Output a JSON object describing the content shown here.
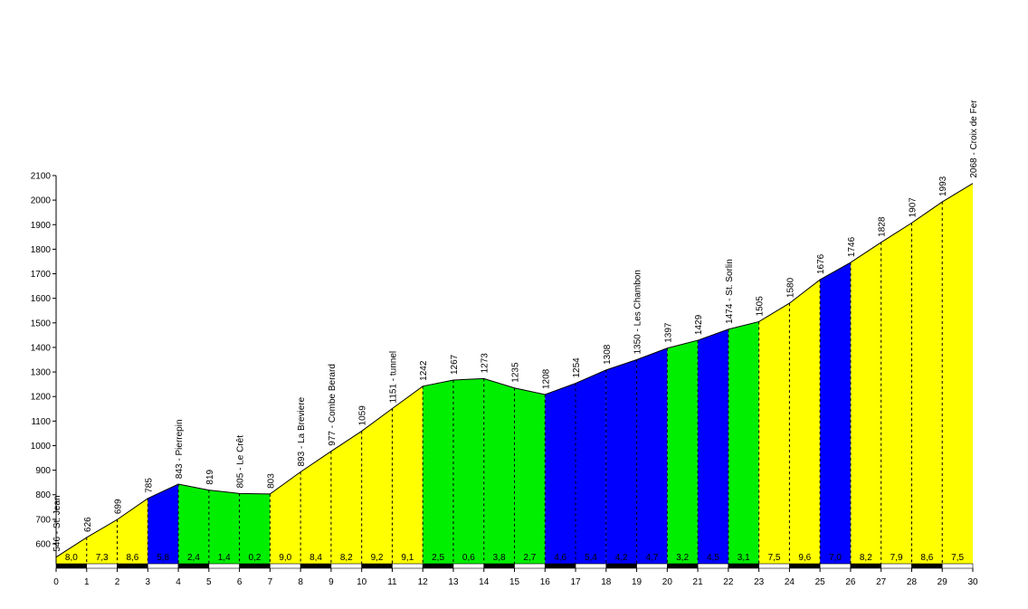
{
  "chart_data": {
    "type": "area",
    "title": "",
    "xlabel": "",
    "ylabel": "",
    "xlim": [
      0,
      30
    ],
    "ylim": [
      520,
      2100
    ],
    "y_ticks": [
      600,
      700,
      800,
      900,
      1000,
      1100,
      1200,
      1300,
      1400,
      1500,
      1600,
      1700,
      1800,
      1900,
      2000,
      2100
    ],
    "x_ticks": [
      0,
      1,
      2,
      3,
      4,
      5,
      6,
      7,
      8,
      9,
      10,
      11,
      12,
      13,
      14,
      15,
      16,
      17,
      18,
      19,
      20,
      21,
      22,
      23,
      24,
      25,
      26,
      27,
      28,
      29,
      30
    ],
    "grid": false,
    "distance_km": [
      0,
      1,
      2,
      3,
      4,
      5,
      6,
      7,
      8,
      9,
      10,
      11,
      12,
      13,
      14,
      15,
      16,
      17,
      18,
      19,
      20,
      21,
      22,
      23,
      24,
      25,
      26,
      27,
      28,
      29,
      30
    ],
    "altitude_m": [
      546,
      626,
      699,
      785,
      843,
      819,
      805,
      803,
      893,
      977,
      1059,
      1151,
      1242,
      1267,
      1273,
      1235,
      1208,
      1254,
      1308,
      1350,
      1397,
      1429,
      1474,
      1505,
      1580,
      1676,
      1746,
      1828,
      1907,
      1993,
      2068
    ],
    "point_labels": [
      "546 - St. Jean",
      "626",
      "699",
      "785",
      "843 - Pierrepin",
      "819",
      "805 - Le Crêt",
      "803",
      "893 - La Breviere",
      "977 - Combe Berard",
      "1059",
      "1151 - tunnel",
      "1242",
      "1267",
      "1273",
      "1235",
      "1208",
      "1254",
      "1308",
      "1350 - Les Chambon",
      "1397",
      "1429",
      "1474 - St. Sorlin",
      "1505",
      "1580",
      "1676",
      "1746",
      "1828",
      "1907",
      "1993",
      "2068 - Croix de Fer"
    ],
    "segment_colors": [
      "#ffff00",
      "#ffff00",
      "#ffff00",
      "#0000ff",
      "#00ee00",
      "#00ee00",
      "#00ee00",
      "#ffff00",
      "#ffff00",
      "#ffff00",
      "#ffff00",
      "#ffff00",
      "#00ee00",
      "#00ee00",
      "#00ee00",
      "#00ee00",
      "#0000ff",
      "#0000ff",
      "#0000ff",
      "#0000ff",
      "#00ee00",
      "#0000ff",
      "#00ee00",
      "#ffff00",
      "#ffff00",
      "#0000ff",
      "#ffff00",
      "#ffff00",
      "#ffff00",
      "#ffff00"
    ],
    "gradient_labels": [
      "8,0",
      "7,3",
      "8,6",
      "5,8",
      "2,4",
      "1,4",
      "0,2",
      "9,0",
      "8,4",
      "8,2",
      "9,2",
      "9,1",
      "2,5",
      "0,6",
      "3,8",
      "2,7",
      "4,6",
      "5,4",
      "4,2",
      "4,7",
      "3,2",
      "4,5",
      "3,1",
      "7,5",
      "9,6",
      "7,0",
      "8,2",
      "7,9",
      "8,6",
      "7,5"
    ]
  }
}
